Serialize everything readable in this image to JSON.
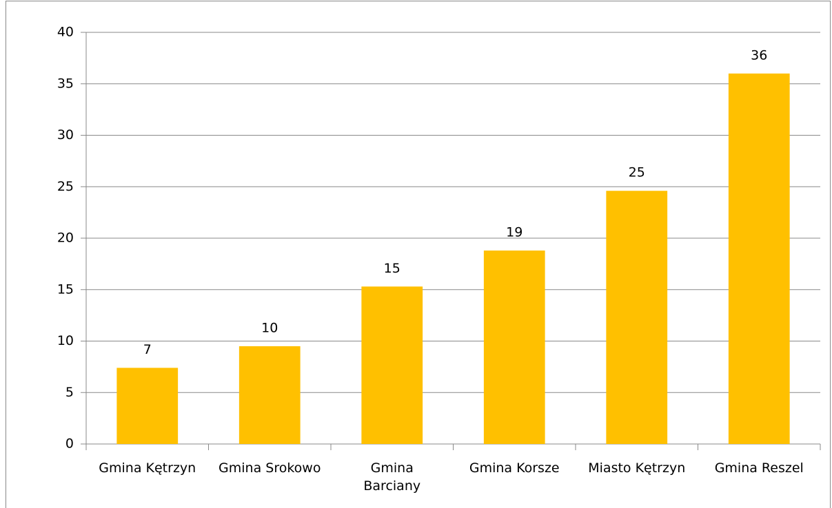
{
  "chart_data": {
    "type": "bar",
    "categories": [
      "Gmina Kętrzyn",
      "Gmina Srokowo",
      "Gmina Barciany",
      "Gmina Korsze",
      "Miasto Kętrzyn",
      "Gmina Reszel"
    ],
    "values": [
      7.4,
      9.5,
      15.3,
      18.8,
      24.6,
      36.0
    ],
    "value_labels": [
      "7",
      "10",
      "15",
      "19",
      "25",
      "36"
    ],
    "color": "#ffc000",
    "ylim": [
      0,
      40
    ],
    "yticks": [
      0,
      5,
      10,
      15,
      20,
      25,
      30,
      35,
      40
    ],
    "grid": true
  }
}
